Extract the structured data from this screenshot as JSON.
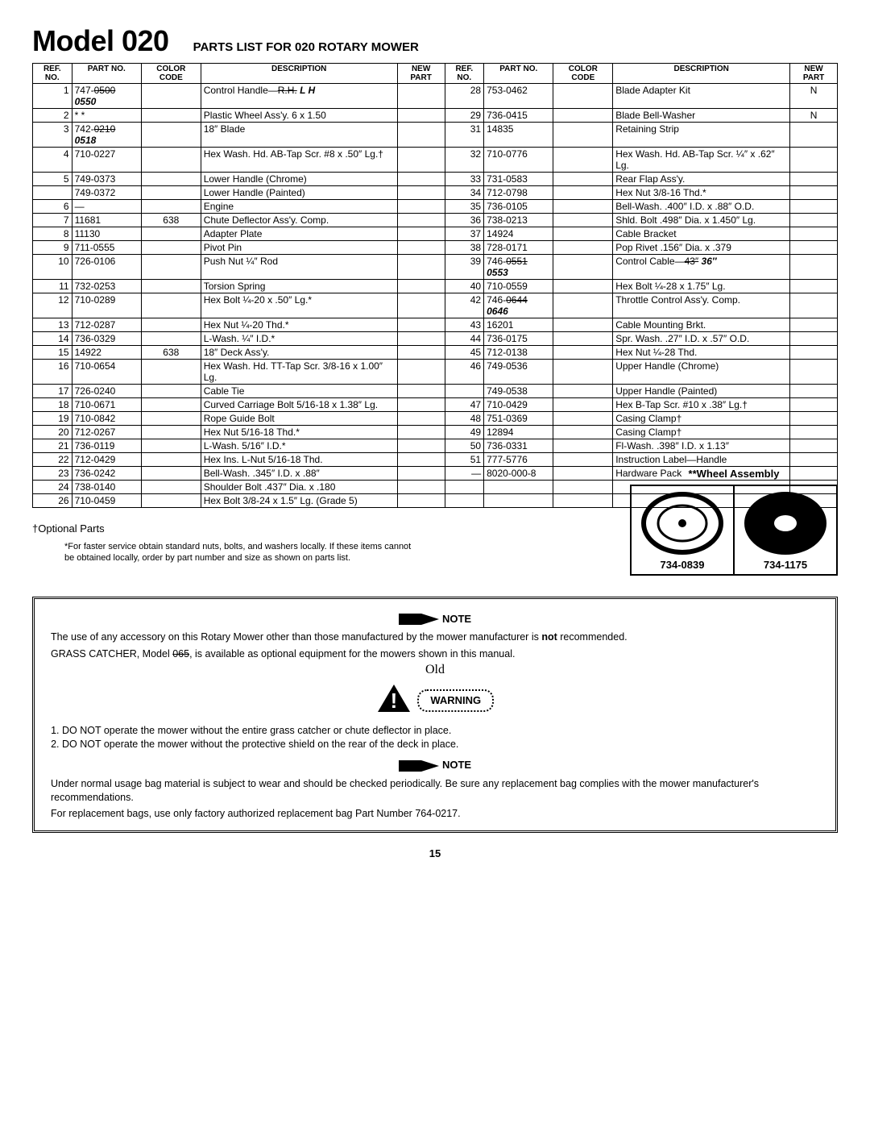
{
  "title": "Model 020",
  "subtitle": "PARTS LIST FOR 020 ROTARY MOWER",
  "headers": {
    "ref": "REF.\nNO.",
    "part": "PART\nNO.",
    "color": "COLOR\nCODE",
    "desc": "DESCRIPTION",
    "newp": "NEW\nPART"
  },
  "left_rows": [
    {
      "ref": "1",
      "part": "747-<s>0500</s> <hw>0550</hw>",
      "color": "",
      "desc": "Control Handle—<s>R.H.</s> <hw>L H</hw>",
      "np": ""
    },
    {
      "ref": "2",
      "part": "* *",
      "color": "",
      "desc": "Plastic Wheel Ass'y. 6 x 1.50",
      "np": ""
    },
    {
      "ref": "3",
      "part": "742-<s>0210</s> <hw>0518</hw>",
      "color": "",
      "desc": "18″ Blade",
      "np": ""
    },
    {
      "ref": "4",
      "part": "710-0227",
      "color": "",
      "desc": "Hex Wash. Hd. AB-Tap Scr. #8 x .50″ Lg.†",
      "np": ""
    },
    {
      "ref": "5",
      "part": "749-0373",
      "color": "",
      "desc": "Lower Handle (Chrome)",
      "np": ""
    },
    {
      "ref": "",
      "part": "749-0372",
      "color": "",
      "desc": "Lower Handle (Painted)",
      "np": ""
    },
    {
      "ref": "6",
      "part": "—",
      "color": "",
      "desc": "Engine",
      "np": ""
    },
    {
      "ref": "7",
      "part": "11681",
      "color": "638",
      "desc": "Chute Deflector Ass'y. Comp.",
      "np": ""
    },
    {
      "ref": "8",
      "part": "11130",
      "color": "",
      "desc": "Adapter Plate",
      "np": ""
    },
    {
      "ref": "9",
      "part": "711-0555",
      "color": "",
      "desc": "Pivot Pin",
      "np": ""
    },
    {
      "ref": "10",
      "part": "726-0106",
      "color": "",
      "desc": "Push Nut ¼″ Rod",
      "np": ""
    },
    {
      "ref": "11",
      "part": "732-0253",
      "color": "",
      "desc": "Torsion Spring",
      "np": ""
    },
    {
      "ref": "12",
      "part": "710-0289",
      "color": "",
      "desc": "Hex Bolt ¼-20 x .50″ Lg.*",
      "np": ""
    },
    {
      "ref": "13",
      "part": "712-0287",
      "color": "",
      "desc": "Hex Nut ¼-20 Thd.*",
      "np": ""
    },
    {
      "ref": "14",
      "part": "736-0329",
      "color": "",
      "desc": "L-Wash. ¼″ I.D.*",
      "np": ""
    },
    {
      "ref": "15",
      "part": "14922",
      "color": "638",
      "desc": "18″ Deck Ass'y.",
      "np": ""
    },
    {
      "ref": "16",
      "part": "710-0654",
      "color": "",
      "desc": "Hex Wash. Hd. TT-Tap Scr. 3/8-16 x 1.00″ Lg.",
      "np": ""
    },
    {
      "ref": "17",
      "part": "726-0240",
      "color": "",
      "desc": "Cable Tie",
      "np": ""
    },
    {
      "ref": "18",
      "part": "710-0671",
      "color": "",
      "desc": "Curved Carriage Bolt 5/16-18 x 1.38″ Lg.",
      "np": ""
    },
    {
      "ref": "19",
      "part": "710-0842",
      "color": "",
      "desc": "Rope Guide Bolt",
      "np": ""
    },
    {
      "ref": "20",
      "part": "712-0267",
      "color": "",
      "desc": "Hex Nut 5/16-18 Thd.*",
      "np": ""
    },
    {
      "ref": "21",
      "part": "736-0119",
      "color": "",
      "desc": "L-Wash. 5/16″ I.D.*",
      "np": ""
    },
    {
      "ref": "22",
      "part": "712-0429",
      "color": "",
      "desc": "Hex Ins. L-Nut 5/16-18 Thd.",
      "np": ""
    },
    {
      "ref": "23",
      "part": "736-0242",
      "color": "",
      "desc": "Bell-Wash. .345″ I.D. x .88″",
      "np": ""
    },
    {
      "ref": "24",
      "part": "738-0140",
      "color": "",
      "desc": "Shoulder Bolt .437″ Dia. x .180",
      "np": ""
    },
    {
      "ref": "26",
      "part": "710-0459",
      "color": "",
      "desc": "Hex Bolt 3/8-24 x 1.5″ Lg. (Grade 5)",
      "np": ""
    }
  ],
  "right_rows": [
    {
      "ref": "28",
      "part": "753-0462",
      "color": "",
      "desc": "Blade Adapter Kit",
      "np": "N"
    },
    {
      "ref": "29",
      "part": "736-0415",
      "color": "",
      "desc": "Blade Bell-Washer",
      "np": "N"
    },
    {
      "ref": "31",
      "part": "14835",
      "color": "",
      "desc": "Retaining Strip",
      "np": ""
    },
    {
      "ref": "32",
      "part": "710-0776",
      "color": "",
      "desc": "Hex Wash. Hd. AB-Tap Scr. ¼″ x .62″ Lg.",
      "np": ""
    },
    {
      "ref": "33",
      "part": "731-0583",
      "color": "",
      "desc": "Rear Flap Ass'y.",
      "np": ""
    },
    {
      "ref": "34",
      "part": "712-0798",
      "color": "",
      "desc": "Hex Nut 3/8-16 Thd.*",
      "np": ""
    },
    {
      "ref": "35",
      "part": "736-0105",
      "color": "",
      "desc": "Bell-Wash. .400″ I.D. x .88″ O.D.",
      "np": ""
    },
    {
      "ref": "36",
      "part": "738-0213",
      "color": "",
      "desc": "Shld. Bolt .498″ Dia. x 1.450″ Lg.",
      "np": ""
    },
    {
      "ref": "37",
      "part": "14924",
      "color": "",
      "desc": "Cable Bracket",
      "np": ""
    },
    {
      "ref": "38",
      "part": "728-0171",
      "color": "",
      "desc": "Pop Rivet .156″ Dia. x .379",
      "np": ""
    },
    {
      "ref": "39",
      "part": "746-<s>0551</s> <hw>0553</hw>",
      "color": "",
      "desc": "Control Cable—<s>43″</s> <hw>36″</hw>",
      "np": ""
    },
    {
      "ref": "40",
      "part": "710-0559",
      "color": "",
      "desc": "Hex Bolt ¼-28 x 1.75″ Lg.",
      "np": ""
    },
    {
      "ref": "42",
      "part": "746-<s>0644</s> <hw>0646</hw>",
      "color": "",
      "desc": "Throttle Control Ass'y. Comp.",
      "np": ""
    },
    {
      "ref": "43",
      "part": "16201",
      "color": "",
      "desc": "Cable Mounting Brkt.",
      "np": ""
    },
    {
      "ref": "44",
      "part": "736-0175",
      "color": "",
      "desc": "Spr. Wash. .27″ I.D. x .57″ O.D.",
      "np": ""
    },
    {
      "ref": "45",
      "part": "712-0138",
      "color": "",
      "desc": "Hex Nut ¼-28 Thd.",
      "np": ""
    },
    {
      "ref": "46",
      "part": "749-0536",
      "color": "",
      "desc": "Upper Handle (Chrome)",
      "np": ""
    },
    {
      "ref": "",
      "part": "749-0538",
      "color": "",
      "desc": "Upper Handle (Painted)",
      "np": ""
    },
    {
      "ref": "47",
      "part": "710-0429",
      "color": "",
      "desc": "Hex B-Tap Scr. #10 x .38″ Lg.†",
      "np": ""
    },
    {
      "ref": "48",
      "part": "751-0369",
      "color": "",
      "desc": "Casing Clamp†",
      "np": ""
    },
    {
      "ref": "49",
      "part": "12894",
      "color": "",
      "desc": "Casing Clamp†",
      "np": ""
    },
    {
      "ref": "50",
      "part": "736-0331",
      "color": "",
      "desc": "Fl-Wash. .398″ I.D. x 1.13″",
      "np": ""
    },
    {
      "ref": "51",
      "part": "777-5776",
      "color": "",
      "desc": "Instruction Label—Handle",
      "np": ""
    },
    {
      "ref": "—",
      "part": "8020-000-8",
      "color": "",
      "desc": "Hardware Pack",
      "np": ""
    }
  ],
  "optional_parts": "†Optional Parts",
  "footnote": "*For faster service obtain standard nuts, bolts, and washers locally. If these items cannot be obtained locally, order by part number and size as shown on parts list.",
  "wheel_title": "**Wheel Assembly",
  "wheels": [
    {
      "label": "734-0839"
    },
    {
      "label": "734-1175"
    }
  ],
  "note1_heading": "NOTE",
  "note1_l1": "The use of any accessory on this Rotary Mower other than those manufactured by the mower manufacturer is <b>not</b> recommended.",
  "note1_l2": "GRASS CATCHER, Model <s>065</s>, is available as optional equipment for the mowers shown in this manual.",
  "hand_old": "Old",
  "warning_label": "WARNING",
  "warn_items": [
    "DO NOT operate the mower without the entire grass catcher or chute deflector in place.",
    "DO NOT operate the mower without the protective shield on the rear of the deck in place."
  ],
  "note2_heading": "NOTE",
  "note2_l1": "Under normal usage bag material is subject to wear and should be checked periodically. Be sure any replacement bag complies with the mower manufacturer's recommendations.",
  "note2_l2": "For replacement bags, use only factory authorized replacement bag Part Number 764-0217.",
  "page_num": "15"
}
